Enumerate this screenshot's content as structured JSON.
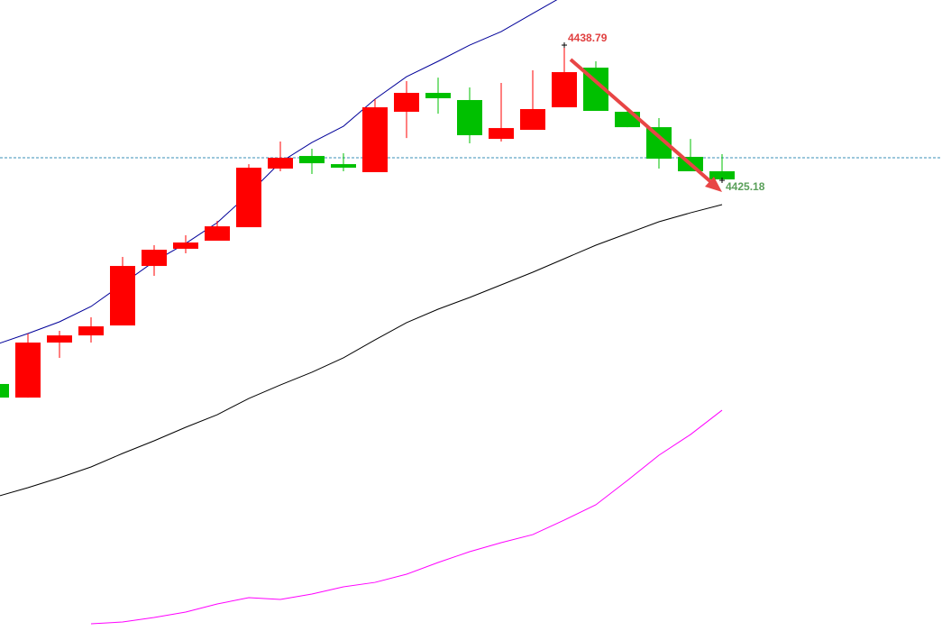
{
  "chart_data": {
    "type": "candlestick",
    "categories": [
      null,
      null,
      null,
      null,
      null,
      null,
      null,
      null,
      null,
      null,
      null,
      null,
      null,
      null,
      null,
      null,
      null,
      null,
      null,
      null,
      null,
      null,
      null,
      null
    ],
    "open": [
      4404.68,
      4403.31,
      4408.85,
      4409.57,
      4410.57,
      4416.56,
      4418.29,
      4419.1,
      4420.46,
      4426.36,
      4427.63,
      4426.81,
      4426.0,
      4432.08,
      4433.98,
      4433.26,
      4429.35,
      4430.26,
      4432.53,
      4436.52,
      4432.08,
      4430.53,
      4427.54,
      4426.09
    ],
    "high": [
      4404.68,
      4409.76,
      4410.03,
      4411.39,
      4417.47,
      4418.65,
      4419.65,
      4421.1,
      4426.81,
      4429.08,
      4428.36,
      4427.9,
      4433.35,
      4435.16,
      4435.52,
      4434.53,
      4434.98,
      4436.25,
      4438.79,
      4437.16,
      4432.53,
      4431.44,
      4429.35,
      4427.81
    ],
    "low": [
      4403.31,
      4403.31,
      4407.31,
      4408.85,
      4410.57,
      4415.56,
      4417.83,
      4419.1,
      4420.46,
      4426.09,
      4425.82,
      4426.09,
      4426.0,
      4429.44,
      4431.89,
      4428.9,
      4429.08,
      4430.26,
      4432.53,
      4432.17,
      4430.53,
      4426.36,
      4426.09,
      4425.18
    ],
    "close": [
      4403.31,
      4408.85,
      4409.57,
      4410.48,
      4416.56,
      4418.19,
      4418.92,
      4420.55,
      4426.45,
      4427.45,
      4426.9,
      4426.45,
      4432.53,
      4433.98,
      4433.44,
      4429.72,
      4430.44,
      4432.35,
      4436.07,
      4432.17,
      4430.53,
      4427.36,
      4426.09,
      4425.27
    ],
    "up_color": "#ff0000",
    "down_color": "#00c000",
    "series": [
      {
        "color": "#000099",
        "values": [
          4408.67,
          4409.76,
          4410.94,
          4412.48,
          4414.75,
          4417.01,
          4418.83,
          4420.92,
          4423.82,
          4427.0,
          4428.99,
          4430.62,
          4433.35,
          4435.61,
          4437.16,
          4438.79,
          4440.15,
          4441.97,
          4443.78,
          null,
          null,
          null,
          null,
          null
        ]
      },
      {
        "color": "#000000",
        "values": [
          4393.33,
          4394.24,
          4395.24,
          4396.33,
          4397.69,
          4398.96,
          4400.32,
          4401.59,
          4403.22,
          4404.58,
          4405.86,
          4407.31,
          4409.12,
          4410.85,
          4412.21,
          4413.39,
          4414.66,
          4415.93,
          4417.29,
          4418.65,
          4419.83,
          4421.01,
          4421.91,
          4422.73
        ]
      },
      {
        "color": "#ff00ff",
        "values": [
          null,
          null,
          null,
          4380.54,
          4380.72,
          4381.18,
          4381.72,
          4382.54,
          4383.17,
          4382.99,
          4383.54,
          4384.26,
          4384.71,
          4385.53,
          4386.71,
          4387.8,
          4388.71,
          4389.52,
          4390.98,
          4392.52,
          4394.97,
          4397.51,
          4399.59,
          4402.04
        ]
      }
    ],
    "reference_line": {
      "value": 4427.45,
      "color": "#3a8fb7"
    },
    "annotations": [
      {
        "value": 4438.79,
        "color": "#e04040"
      },
      {
        "value": 4425.18,
        "color": "#5aa05a"
      }
    ],
    "ylim": [
      4380.27,
      4443.33
    ]
  }
}
